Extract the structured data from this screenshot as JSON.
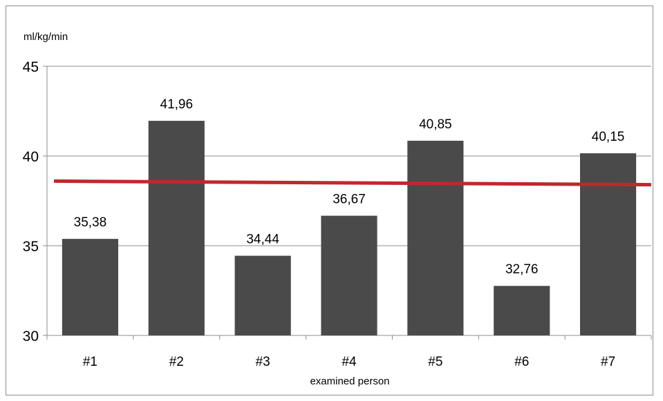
{
  "chart_data": {
    "type": "bar",
    "ylabel": "ml/kg/min",
    "xlabel": "examined person",
    "categories": [
      "#1",
      "#2",
      "#3",
      "#4",
      "#5",
      "#6",
      "#7"
    ],
    "values": [
      35.38,
      41.96,
      34.44,
      36.67,
      40.85,
      32.76,
      40.15
    ],
    "value_labels": [
      "35,38",
      "41,96",
      "34,44",
      "36,67",
      "40,85",
      "32,76",
      "40,15"
    ],
    "ylim": [
      30,
      45
    ],
    "yticks": [
      30,
      35,
      40,
      45
    ],
    "grid": true,
    "legend": "none",
    "mean_line": {
      "start": 38.6,
      "end": 38.4,
      "color": "#c0282d"
    },
    "colors": {
      "bar": "#4a4a4a",
      "grid": "#8c8c8c",
      "axis": "#8c8c8c"
    }
  }
}
